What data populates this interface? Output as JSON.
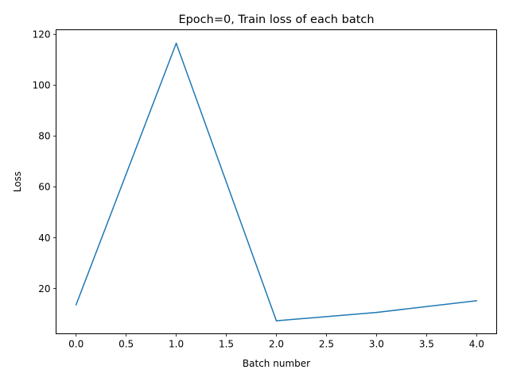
{
  "chart_data": {
    "type": "line",
    "title": "Epoch=0, Train loss of each batch",
    "xlabel": "Batch number",
    "ylabel": "Loss",
    "x": [
      0,
      1,
      2,
      3,
      4
    ],
    "series": [
      {
        "values": [
          13.6,
          116.5,
          7.3,
          10.6,
          15.2
        ],
        "color": "#1f77b4"
      }
    ],
    "xlim": [
      -0.2,
      4.2
    ],
    "ylim": [
      2.2,
      121.8
    ],
    "xticks": [
      0.0,
      0.5,
      1.0,
      1.5,
      2.0,
      2.5,
      3.0,
      3.5,
      4.0
    ],
    "xtick_labels": [
      "0.0",
      "0.5",
      "1.0",
      "1.5",
      "2.0",
      "2.5",
      "3.0",
      "3.5",
      "4.0"
    ],
    "yticks": [
      20,
      40,
      60,
      80,
      100,
      120
    ],
    "ytick_labels": [
      "20",
      "40",
      "60",
      "80",
      "100",
      "120"
    ],
    "grid": false,
    "legend": "none"
  }
}
